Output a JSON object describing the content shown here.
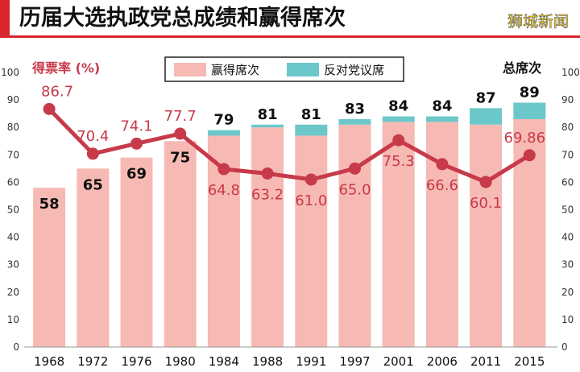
{
  "chart_data": {
    "type": "bar",
    "title": "历届大选执政党总成绩和赢得席次",
    "watermark": "狮城新闻",
    "left_axis_label": "得票率 (%)",
    "right_axis_label": "总席次",
    "categories": [
      "1968",
      "1972",
      "1976",
      "1980",
      "1984",
      "1988",
      "1991",
      "1997",
      "2001",
      "2006",
      "2011",
      "2015"
    ],
    "series": [
      {
        "name": "赢得席次",
        "kind": "bar",
        "stack": "seats",
        "color": "#f7b9b3",
        "values": [
          58,
          65,
          69,
          75,
          77,
          80,
          77,
          81,
          82,
          82,
          81,
          83
        ]
      },
      {
        "name": "反对党议席",
        "kind": "bar",
        "stack": "seats",
        "color": "#6cc7cb",
        "values": [
          0,
          0,
          0,
          0,
          2,
          1,
          4,
          2,
          2,
          2,
          6,
          6
        ]
      },
      {
        "name": "得票率",
        "kind": "line",
        "color": "#c73a4a",
        "values": [
          86.7,
          70.4,
          74.1,
          77.7,
          64.8,
          63.2,
          61.0,
          65.0,
          75.3,
          66.6,
          60.1,
          69.86
        ],
        "labels": [
          "86.7",
          "70.4",
          "74.1",
          "77.7",
          "64.8",
          "63.2",
          "61.0",
          "65.0",
          "75.3",
          "66.6",
          "60.1",
          "69.86"
        ]
      }
    ],
    "seat_labels": [
      "58",
      "65",
      "69",
      "75",
      "79",
      "81",
      "81",
      "83",
      "84",
      "84",
      "87",
      "89"
    ],
    "ylim": [
      0,
      100
    ],
    "yticks": [
      0,
      10,
      20,
      30,
      40,
      50,
      60,
      70,
      80,
      90,
      100
    ],
    "grid": false,
    "legend_position": "top-center",
    "colors": {
      "title_bar": "#d9262c",
      "bar": "#f7b9b3",
      "opposition": "#6cc7cb",
      "line": "#c73a4a",
      "label_red": "#c73a4a",
      "label_black": "#111111"
    }
  }
}
